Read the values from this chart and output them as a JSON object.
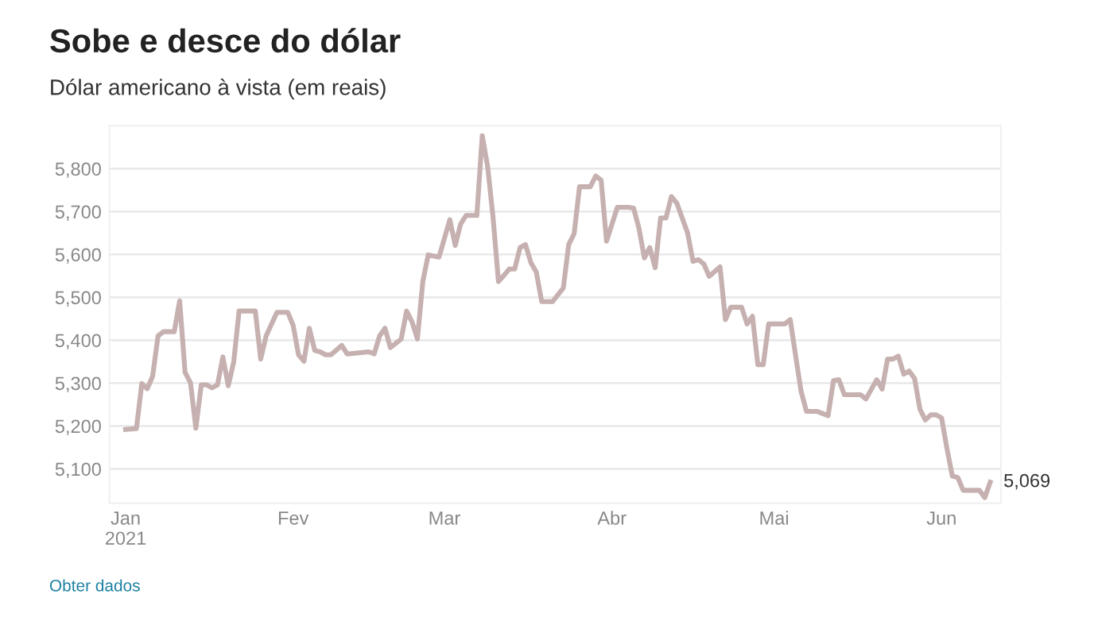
{
  "chart_data": {
    "type": "line",
    "title": "Sobe e desce do dólar",
    "subtitle": "Dólar americano à vista (em reais)",
    "x": [
      "2021-01-01",
      "2021-01-03",
      "2021-01-04",
      "2021-01-05",
      "2021-01-06",
      "2021-01-07",
      "2021-01-08",
      "2021-01-10",
      "2021-01-11",
      "2021-01-12",
      "2021-01-13",
      "2021-01-14",
      "2021-01-15",
      "2021-01-16",
      "2021-01-17",
      "2021-01-18",
      "2021-01-19",
      "2021-01-20",
      "2021-01-21",
      "2021-01-22",
      "2021-01-25",
      "2021-01-26",
      "2021-01-27",
      "2021-01-29",
      "2021-01-31",
      "2021-02-01",
      "2021-02-02",
      "2021-02-03",
      "2021-02-04",
      "2021-02-05",
      "2021-02-06",
      "2021-02-07",
      "2021-02-08",
      "2021-02-10",
      "2021-02-11",
      "2021-02-15",
      "2021-02-16",
      "2021-02-17",
      "2021-02-18",
      "2021-02-19",
      "2021-02-21",
      "2021-02-22",
      "2021-02-23",
      "2021-02-24",
      "2021-02-25",
      "2021-02-26",
      "2021-02-28",
      "2021-03-02",
      "2021-03-03",
      "2021-03-04",
      "2021-03-05",
      "2021-03-07",
      "2021-03-08",
      "2021-03-09",
      "2021-03-10",
      "2021-03-11",
      "2021-03-12",
      "2021-03-13",
      "2021-03-14",
      "2021-03-15",
      "2021-03-16",
      "2021-03-17",
      "2021-03-18",
      "2021-03-19",
      "2021-03-21",
      "2021-03-23",
      "2021-03-24",
      "2021-03-25",
      "2021-03-26",
      "2021-03-28",
      "2021-03-29",
      "2021-03-30",
      "2021-03-31",
      "2021-04-02",
      "2021-04-04",
      "2021-04-05",
      "2021-04-06",
      "2021-04-07",
      "2021-04-08",
      "2021-04-09",
      "2021-04-10",
      "2021-04-11",
      "2021-04-12",
      "2021-04-13",
      "2021-04-15",
      "2021-04-16",
      "2021-04-17",
      "2021-04-18",
      "2021-04-19",
      "2021-04-21",
      "2021-04-22",
      "2021-04-23",
      "2021-04-25",
      "2021-04-26",
      "2021-04-27",
      "2021-04-28",
      "2021-04-29",
      "2021-04-30",
      "2021-05-03",
      "2021-05-04",
      "2021-05-05",
      "2021-05-06",
      "2021-05-07",
      "2021-05-09",
      "2021-05-11",
      "2021-05-12",
      "2021-05-13",
      "2021-05-14",
      "2021-05-17",
      "2021-05-18",
      "2021-05-20",
      "2021-05-21",
      "2021-05-22",
      "2021-05-23",
      "2021-05-24",
      "2021-05-25",
      "2021-05-26",
      "2021-05-27",
      "2021-05-28",
      "2021-05-29",
      "2021-05-30",
      "2021-05-31",
      "2021-06-01",
      "2021-06-02",
      "2021-06-03",
      "2021-06-04",
      "2021-06-05",
      "2021-06-08",
      "2021-06-09",
      "2021-06-10"
    ],
    "series": [
      {
        "color": "#c6b0b0",
        "values": [
          5192,
          5194,
          5299,
          5287,
          5316,
          5410,
          5420,
          5420,
          5492,
          5325,
          5301,
          5195,
          5296,
          5296,
          5289,
          5296,
          5361,
          5294,
          5349,
          5468,
          5468,
          5356,
          5410,
          5465,
          5465,
          5435,
          5366,
          5351,
          5428,
          5376,
          5373,
          5366,
          5366,
          5388,
          5368,
          5373,
          5368,
          5410,
          5428,
          5383,
          5403,
          5468,
          5443,
          5403,
          5537,
          5599,
          5594,
          5681,
          5621,
          5671,
          5691,
          5691,
          5877,
          5805,
          5686,
          5537,
          5551,
          5566,
          5566,
          5616,
          5623,
          5581,
          5559,
          5490,
          5490,
          5522,
          5623,
          5648,
          5758,
          5758,
          5783,
          5773,
          5631,
          5710,
          5710,
          5708,
          5661,
          5592,
          5616,
          5569,
          5685,
          5685,
          5735,
          5720,
          5650,
          5584,
          5588,
          5578,
          5549,
          5571,
          5448,
          5477,
          5477,
          5438,
          5456,
          5343,
          5343,
          5438,
          5438,
          5448,
          5363,
          5281,
          5234,
          5234,
          5224,
          5306,
          5308,
          5273,
          5273,
          5263,
          5308,
          5286,
          5356,
          5356,
          5363,
          5321,
          5328,
          5311,
          5239,
          5214,
          5226,
          5226,
          5219,
          5147,
          5083,
          5080,
          5050,
          5050,
          5033,
          5069
        ]
      }
    ],
    "xlim": [
      "2020-12-29",
      "2021-06-12"
    ],
    "xticks": [
      {
        "value": "2021-01-01",
        "label": "Jan\n2021"
      },
      {
        "value": "2021-02-01",
        "label": "Fev"
      },
      {
        "value": "2021-03-01",
        "label": "Mar"
      },
      {
        "value": "2021-04-01",
        "label": "Abr"
      },
      {
        "value": "2021-05-01",
        "label": "Mai"
      },
      {
        "value": "2021-06-01",
        "label": "Jun"
      }
    ],
    "ylim": [
      5020,
      5900
    ],
    "yticks": [
      {
        "value": 5100,
        "label": "5,100"
      },
      {
        "value": 5200,
        "label": "5,200"
      },
      {
        "value": 5300,
        "label": "5,300"
      },
      {
        "value": 5400,
        "label": "5,400"
      },
      {
        "value": 5500,
        "label": "5,500"
      },
      {
        "value": 5600,
        "label": "5,600"
      },
      {
        "value": 5700,
        "label": "5,700"
      },
      {
        "value": 5800,
        "label": "5,800"
      }
    ],
    "grid": "y",
    "marker": "none",
    "line_style": "solid",
    "annotations": [
      {
        "text": "5,069",
        "x": "2021-06-10",
        "y": 5069
      },
      "Obter dados"
    ]
  }
}
